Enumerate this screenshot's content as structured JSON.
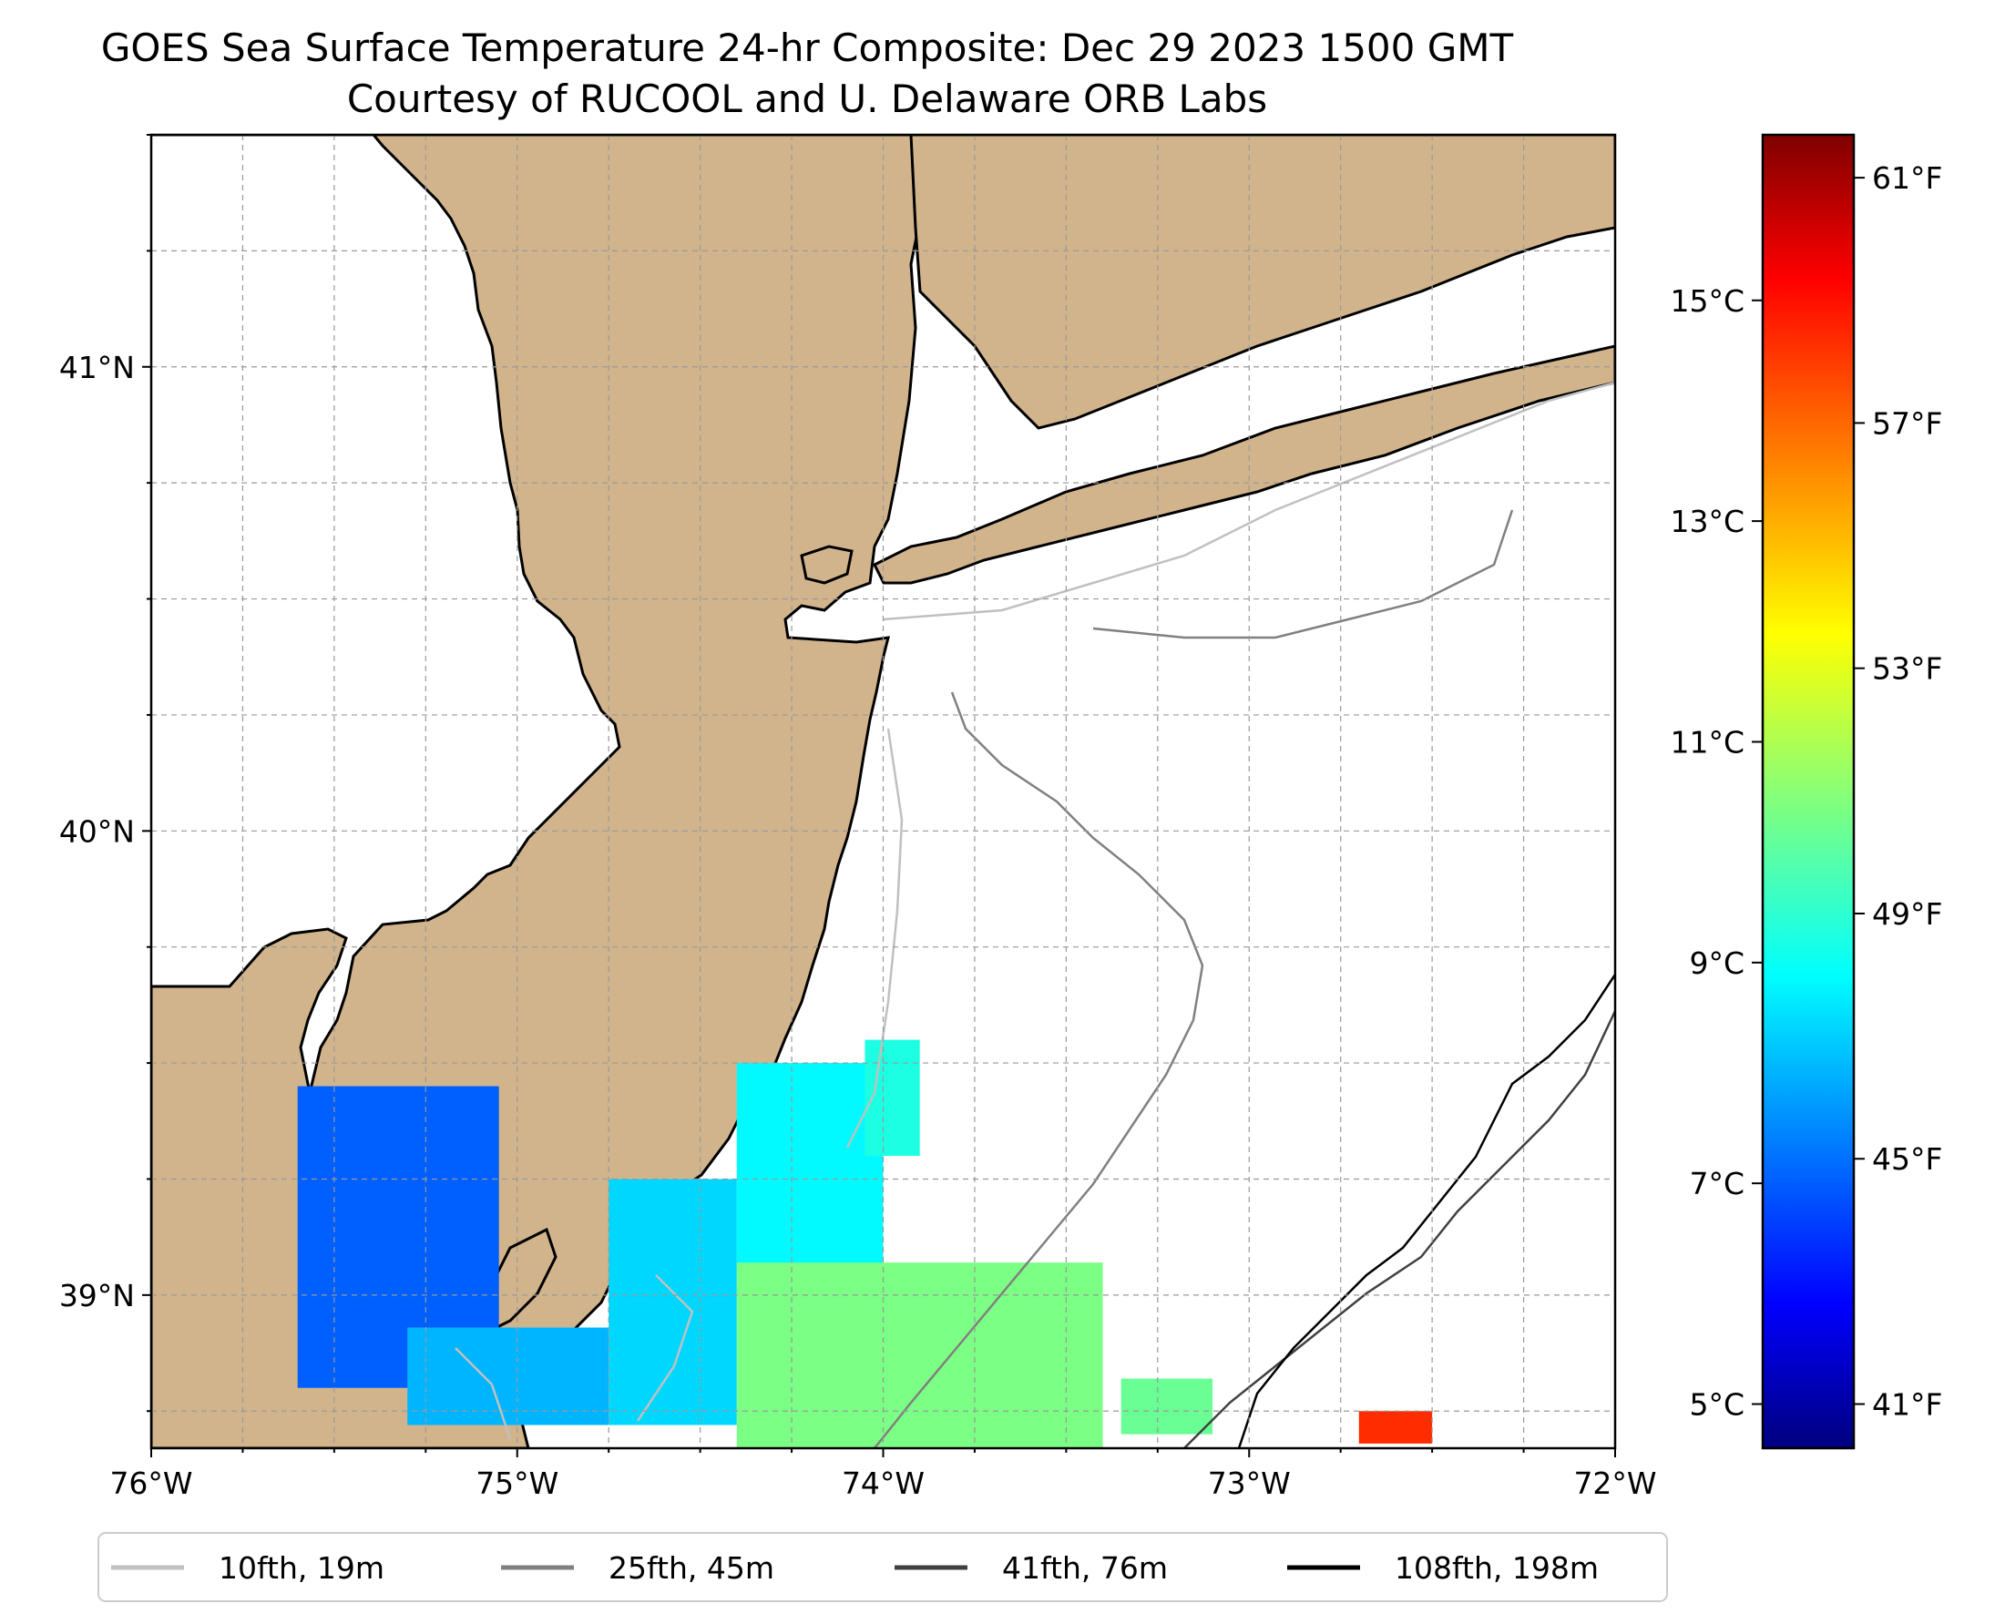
{
  "title": {
    "line1": "GOES Sea Surface Temperature 24-hr Composite: Dec 29 2023 1500 GMT",
    "line2": "Courtesy of RUCOOL and U. Delaware ORB Labs"
  },
  "map": {
    "lon_range": [
      -76,
      -72
    ],
    "lat_range": [
      38.67,
      41.5
    ],
    "land_color": "#d2b48c",
    "water_color": "#ffffff",
    "gridlines": true,
    "lon_ticks": [
      {
        "value": -76,
        "label": "76°W"
      },
      {
        "value": -75,
        "label": "75°W"
      },
      {
        "value": -74,
        "label": "74°W"
      },
      {
        "value": -73,
        "label": "73°W"
      },
      {
        "value": -72,
        "label": "72°W"
      }
    ],
    "lat_ticks": [
      {
        "value": 41,
        "label": "41°N"
      },
      {
        "value": 40,
        "label": "40°N"
      },
      {
        "value": 39,
        "label": "39°N"
      }
    ]
  },
  "colorbar": {
    "colormap": "jet",
    "range_c": [
      4.6,
      16.5
    ],
    "celsius_ticks": [
      {
        "value": 5,
        "label": "5°C"
      },
      {
        "value": 7,
        "label": "7°C"
      },
      {
        "value": 9,
        "label": "9°C"
      },
      {
        "value": 11,
        "label": "11°C"
      },
      {
        "value": 13,
        "label": "13°C"
      },
      {
        "value": 15,
        "label": "15°C"
      }
    ],
    "fahrenheit_ticks": [
      {
        "value": 41,
        "label": "41°F"
      },
      {
        "value": 45,
        "label": "45°F"
      },
      {
        "value": 49,
        "label": "49°F"
      },
      {
        "value": 53,
        "label": "53°F"
      },
      {
        "value": 57,
        "label": "57°F"
      },
      {
        "value": 61,
        "label": "61°F"
      }
    ]
  },
  "legend": {
    "position": "bottom",
    "entries": [
      {
        "label": "10fth, 19m",
        "color": "#c0c0c0"
      },
      {
        "label": "25fth, 45m",
        "color": "#808080"
      },
      {
        "label": "41fth, 76m",
        "color": "#404040"
      },
      {
        "label": "108fth, 198m",
        "color": "#000000"
      }
    ]
  },
  "chart_data": {
    "type": "heatmap",
    "variable": "sea surface temperature (°C)",
    "regions": [
      {
        "lon": [
          -75.6,
          -75.05
        ],
        "lat": [
          38.8,
          39.45
        ],
        "value_c": 7.2
      },
      {
        "lon": [
          -75.3,
          -74.75
        ],
        "lat": [
          38.72,
          38.93
        ],
        "value_c": 8.2
      },
      {
        "lon": [
          -74.75,
          -74.4
        ],
        "lat": [
          38.72,
          39.25
        ],
        "value_c": 8.6
      },
      {
        "lon": [
          -74.4,
          -74.0
        ],
        "lat": [
          39.05,
          39.5
        ],
        "value_c": 9.0
      },
      {
        "lon": [
          -74.05,
          -73.9
        ],
        "lat": [
          39.3,
          39.55
        ],
        "value_c": 9.4
      },
      {
        "lon": [
          -74.4,
          -73.4
        ],
        "lat": [
          38.67,
          39.07
        ],
        "value_c": 10.5
      },
      {
        "lon": [
          -73.35,
          -73.1
        ],
        "lat": [
          38.7,
          38.82
        ],
        "value_c": 10.3
      },
      {
        "lon": [
          -72.7,
          -72.5
        ],
        "lat": [
          38.68,
          38.75
        ],
        "value_c": 14.5
      }
    ]
  }
}
